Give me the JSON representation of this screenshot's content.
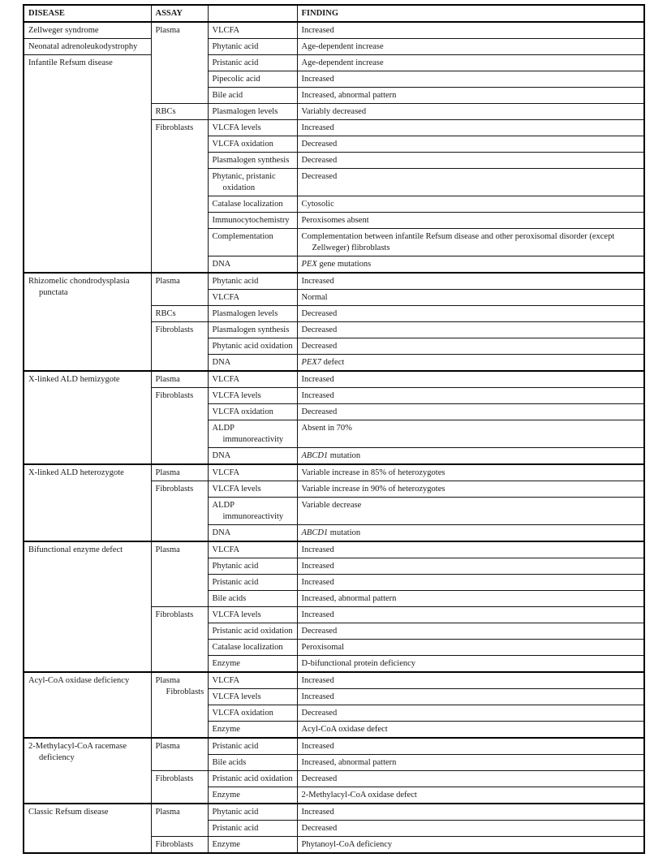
{
  "page": {
    "background": "#ffffff",
    "text_color": "#1a1a1a",
    "border_color": "#000000"
  },
  "table": {
    "headers": [
      {
        "label": "DISEASE"
      },
      {
        "label": "ASSAY"
      },
      {
        "label": ""
      },
      {
        "label": "FINDING"
      }
    ],
    "sections": [
      {
        "disease_cells": [
          {
            "span": 1,
            "cell": "Zellweger syndrome"
          },
          {
            "span": 1,
            "cell": "Neonatal adrenoleukodystrophy"
          },
          {
            "span": 12,
            "cell": "Infantile Refsum disease"
          }
        ],
        "assays": [
          {
            "span": 5,
            "cell": "Plasma",
            "rows": [
              {
                "test": "VLCFA",
                "finding": "Increased"
              },
              {
                "test": "Phytanic acid",
                "finding": "Age-dependent increase"
              },
              {
                "test": "Pristanic acid",
                "finding": "Age-dependent increase"
              },
              {
                "test": "Pipecolic acid",
                "finding": "Increased"
              },
              {
                "test": "Bile acid",
                "finding": "Increased, abnormal pattern"
              }
            ]
          },
          {
            "span": 1,
            "cell": "RBCs",
            "rows": [
              {
                "test": "Plasmalogen levels",
                "finding": "Variably decreased"
              }
            ]
          },
          {
            "span": 8,
            "cell": "Fibroblasts",
            "rows": [
              {
                "test": "VLCFA levels",
                "finding": "Increased"
              },
              {
                "test": "VLCFA oxidation",
                "finding": "Decreased"
              },
              {
                "test": "Plasmalogen synthesis",
                "finding": "Decreased"
              },
              {
                "test": [
                  "Phytanic, pristanic",
                  "oxidation"
                ],
                "finding": "Decreased"
              },
              {
                "test": "Catalase localization",
                "finding": "Cytosolic"
              },
              {
                "test": "Immunocytochemistry",
                "finding": "Peroxisomes absent"
              },
              {
                "test": "Complementation",
                "finding": [
                  "Complementation between infantile Refsum disease and other peroxisomal disorder (except",
                  "Zellweger) flibroblasts"
                ]
              },
              {
                "test": "DNA",
                "finding": [
                  [
                    {
                      "t": "PEX",
                      "i": true
                    },
                    {
                      "t": " gene mutations"
                    }
                  ]
                ]
              }
            ]
          }
        ]
      },
      {
        "disease_cells": [
          {
            "span": 6,
            "cell": [
              "Rhizomelic chondrodysplasia",
              "punctata"
            ]
          }
        ],
        "assays": [
          {
            "span": 2,
            "cell": "Plasma",
            "rows": [
              {
                "test": "Phytanic acid",
                "finding": "Increased"
              },
              {
                "test": "VLCFA",
                "finding": "Normal"
              }
            ]
          },
          {
            "span": 1,
            "cell": "RBCs",
            "rows": [
              {
                "test": "Plasmalogen levels",
                "finding": "Decreased"
              }
            ]
          },
          {
            "span": 3,
            "cell": "Fibroblasts",
            "rows": [
              {
                "test": "Plasmalogen synthesis",
                "finding": "Decreased"
              },
              {
                "test": "Phytanic acid oxidation",
                "finding": "Decreased"
              },
              {
                "test": "DNA",
                "finding": [
                  [
                    {
                      "t": "PEX7",
                      "i": true
                    },
                    {
                      "t": " defect"
                    }
                  ]
                ]
              }
            ]
          }
        ]
      },
      {
        "disease_cells": [
          {
            "span": 5,
            "cell": "X-linked ALD hemizygote"
          }
        ],
        "assays": [
          {
            "span": 1,
            "cell": "Plasma",
            "rows": [
              {
                "test": "VLCFA",
                "finding": "Increased"
              }
            ]
          },
          {
            "span": 4,
            "cell": "Fibroblasts",
            "rows": [
              {
                "test": "VLCFA levels",
                "finding": "Increased"
              },
              {
                "test": "VLCFA oxidation",
                "finding": "Decreased"
              },
              {
                "test": [
                  "ALDP",
                  "immunoreactivity"
                ],
                "finding": "Absent in 70%"
              },
              {
                "test": "DNA",
                "finding": [
                  [
                    {
                      "t": "ABCD1",
                      "i": true
                    },
                    {
                      "t": " mutation"
                    }
                  ]
                ]
              }
            ]
          }
        ]
      },
      {
        "disease_cells": [
          {
            "span": 4,
            "cell": "X-linked ALD heterozygote"
          }
        ],
        "assays": [
          {
            "span": 1,
            "cell": "Plasma",
            "rows": [
              {
                "test": "VLCFA",
                "finding": "Variable increase in 85% of heterozygotes"
              }
            ]
          },
          {
            "span": 3,
            "cell": "Fibroblasts",
            "rows": [
              {
                "test": "VLCFA levels",
                "finding": "Variable increase in 90% of heterozygotes"
              },
              {
                "test": [
                  "ALDP",
                  "immunoreactivity"
                ],
                "finding": "Variable decrease"
              },
              {
                "test": "DNA",
                "finding": [
                  [
                    {
                      "t": "ABCD1",
                      "i": true
                    },
                    {
                      "t": " mutation"
                    }
                  ]
                ]
              }
            ]
          }
        ]
      },
      {
        "disease_cells": [
          {
            "span": 8,
            "cell": "Bifunctional enzyme defect"
          }
        ],
        "assays": [
          {
            "span": 4,
            "cell": "Plasma",
            "rows": [
              {
                "test": "VLCFA",
                "finding": "Increased"
              },
              {
                "test": "Phytanic acid",
                "finding": "Increased"
              },
              {
                "test": "Pristanic acid",
                "finding": "Increased"
              },
              {
                "test": "Bile acids",
                "finding": "Increased, abnormal pattern"
              }
            ]
          },
          {
            "span": 4,
            "cell": "Fibroblasts",
            "rows": [
              {
                "test": "VLCFA levels",
                "finding": "Increased"
              },
              {
                "test": "Pristanic acid oxidation",
                "finding": "Decreased"
              },
              {
                "test": "Catalase localization",
                "finding": "Peroxisomal"
              },
              {
                "test": "Enzyme",
                "finding": "D-bifunctional protein deficiency"
              }
            ]
          }
        ]
      },
      {
        "disease_cells": [
          {
            "span": 4,
            "cell": "Acyl-CoA oxidase deficiency"
          }
        ],
        "assays": [
          {
            "span": 4,
            "cell": [
              "Plasma",
              "Fibroblasts"
            ],
            "rows": [
              {
                "test": "VLCFA",
                "finding": "Increased"
              },
              {
                "test": "VLCFA levels",
                "finding": "Increased"
              },
              {
                "test": "VLCFA oxidation",
                "finding": "Decreased"
              },
              {
                "test": "Enzyme",
                "finding": "Acyl-CoA oxidase defect"
              }
            ]
          }
        ]
      },
      {
        "disease_cells": [
          {
            "span": 4,
            "cell": [
              "2-Methylacyl-CoA racemase",
              "deficiency"
            ]
          }
        ],
        "assays": [
          {
            "span": 2,
            "cell": "Plasma",
            "rows": [
              {
                "test": "Pristanic acid",
                "finding": "Increased"
              },
              {
                "test": "Bile acids",
                "finding": "Increased, abnormal pattern"
              }
            ]
          },
          {
            "span": 2,
            "cell": "Fibroblasts",
            "rows": [
              {
                "test": "Pristanic acid oxidation",
                "finding": "Decreased"
              },
              {
                "test": "Enzyme",
                "finding": "2-Methylacyl-CoA oxidase defect"
              }
            ]
          }
        ]
      },
      {
        "disease_cells": [
          {
            "span": 3,
            "cell": "Classic Refsum disease"
          }
        ],
        "assays": [
          {
            "span": 2,
            "cell": "Plasma",
            "rows": [
              {
                "test": "Phytanic acid",
                "finding": "Increased"
              },
              {
                "test": "Pristanic acid",
                "finding": "Decreased"
              }
            ]
          },
          {
            "span": 1,
            "cell": "Fibroblasts",
            "rows": [
              {
                "test": "Enzyme",
                "finding": "Phytanoyl-CoA deficiency"
              }
            ]
          }
        ]
      }
    ]
  }
}
